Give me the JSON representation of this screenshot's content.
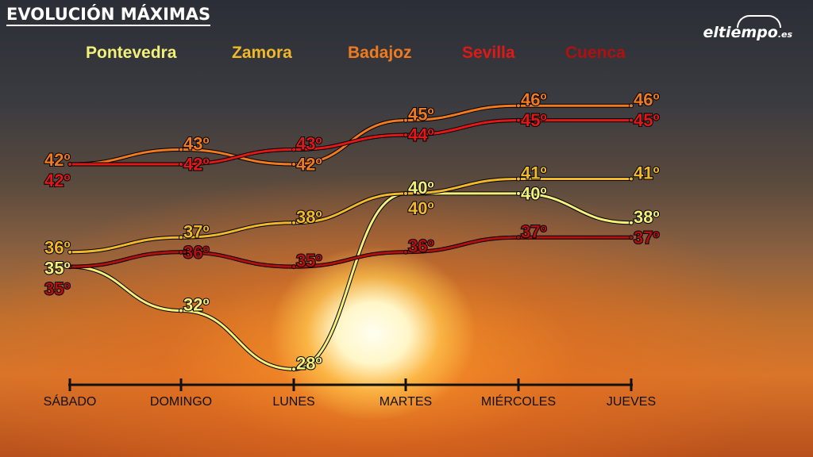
{
  "header": {
    "title": "EVOLUCIÓN MÁXIMAS",
    "logo": "eltiempo",
    "logo_suffix": ".es"
  },
  "chart_data": {
    "type": "line",
    "title": "EVOLUCIÓN MÁXIMAS",
    "categories": [
      "SÁBADO",
      "DOMINGO",
      "LUNES",
      "MARTES",
      "MIÉRCOLES",
      "JUEVES"
    ],
    "unit": "º",
    "legend_placement": "top",
    "grid": false,
    "series": [
      {
        "name": "Pontevedra",
        "color": "#f2f07a",
        "values": [
          35,
          32,
          28,
          40,
          40,
          38
        ]
      },
      {
        "name": "Zamora",
        "color": "#f0b82a",
        "values": [
          36,
          37,
          38,
          40,
          41,
          41
        ]
      },
      {
        "name": "Badajoz",
        "color": "#f07a20",
        "values": [
          42,
          43,
          42,
          45,
          46,
          46
        ]
      },
      {
        "name": "Sevilla",
        "color": "#e01818",
        "values": [
          42,
          42,
          43,
          44,
          45,
          45
        ]
      },
      {
        "name": "Cuenca",
        "color": "#b01010",
        "values": [
          35,
          36,
          35,
          36,
          37,
          37
        ]
      }
    ]
  }
}
